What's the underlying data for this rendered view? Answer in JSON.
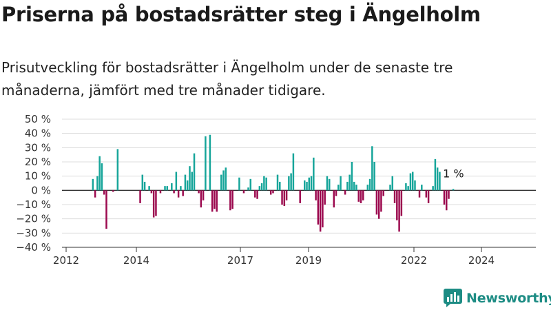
{
  "title": "Priserna på bostadsrätter steg i Ängelholm",
  "subtitle": "Prisutveckling för bostadsrätter i Ängelholm under de senaste tre månaderna, jämfört med tre månader tidigare.",
  "brand": "Newsworthy",
  "colors": {
    "positive": "#17a59a",
    "negative": "#9c0a4f",
    "brand": "#1d8c84",
    "grid": "#dcdcdc",
    "axis": "#333333"
  },
  "chart_data": {
    "type": "bar",
    "title": "",
    "xlabel": "",
    "ylabel": "",
    "x_start": "2012-06",
    "ylim": [
      -40,
      50
    ],
    "yticks": [
      -40,
      -30,
      -20,
      -10,
      0,
      10,
      20,
      30,
      40,
      50
    ],
    "ytick_labels": [
      "−40 %",
      "−30 %",
      "−20 %",
      "−10 %",
      "0 %",
      "10 %",
      "20 %",
      "30 %",
      "40 %",
      "50 %"
    ],
    "xtick_labels": [
      "2012",
      "2014",
      "2017",
      "2019",
      "2022",
      "2024"
    ],
    "grid": true,
    "annotation": "1 %",
    "series": [
      {
        "values": [
          0,
          0,
          0,
          0,
          0,
          0,
          8,
          -5,
          10,
          24,
          19,
          -3,
          -27,
          0,
          0,
          -1,
          0,
          29,
          0,
          0,
          0,
          0,
          0,
          0,
          0,
          0,
          0,
          -9,
          11,
          6,
          0,
          3,
          -2,
          -19,
          -18,
          0,
          -2,
          0,
          3,
          3,
          0,
          5,
          -2,
          13,
          -5,
          3,
          -4,
          11,
          7,
          17,
          13,
          26,
          0,
          -2,
          -12,
          -7,
          38,
          0,
          39,
          -15,
          -13,
          -15,
          0,
          11,
          14,
          16,
          0,
          -14,
          -13,
          0,
          0,
          9,
          0,
          -2,
          0,
          2,
          8,
          0,
          -5,
          -6,
          3,
          5,
          10,
          9,
          0,
          -3,
          -2,
          0,
          11,
          6,
          -10,
          -11,
          -7,
          10,
          12,
          26,
          0,
          0,
          -9,
          0,
          7,
          6,
          9,
          10,
          23,
          -7,
          -24,
          -29,
          -26,
          -10,
          10,
          8,
          0,
          -12,
          -4,
          4,
          10,
          0,
          -3,
          6,
          11,
          20,
          6,
          4,
          -8,
          -9,
          -7,
          0,
          4,
          8,
          31,
          20,
          -17,
          -20,
          -15,
          -4,
          0,
          0,
          4,
          10,
          -9,
          -21,
          -29,
          -18,
          0,
          5,
          3,
          12,
          13,
          7,
          0,
          -5,
          4,
          0,
          -5,
          -9,
          0,
          3,
          22,
          16,
          13,
          0,
          -10,
          -14,
          -6,
          0,
          1
        ]
      }
    ]
  }
}
